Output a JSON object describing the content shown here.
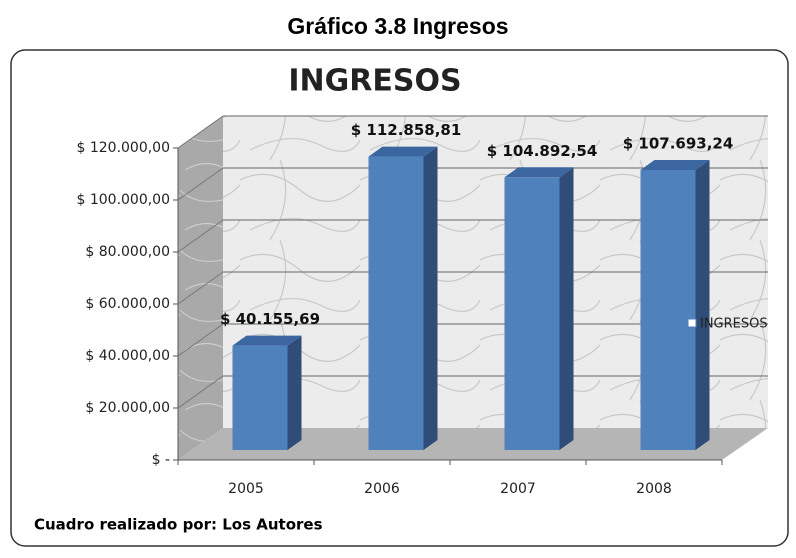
{
  "caption": "Gráfico 3.8 Ingresos",
  "source": "Cuadro realizado por: Los Autores",
  "chart_data": {
    "type": "bar3d",
    "title": "INGRESOS",
    "categories": [
      "2005",
      "2006",
      "2007",
      "2008"
    ],
    "series": [
      {
        "name": "INGRESOS",
        "color": "#4f81bd",
        "values": [
          40155.69,
          112858.81,
          104892.54,
          107693.24
        ],
        "value_labels": [
          "$ 40.155,69",
          "$ 112.858,81",
          "$ 104.892,54",
          "$ 107.693,24"
        ]
      }
    ],
    "ylim": [
      0,
      120000
    ],
    "yticks": [
      {
        "value": 0,
        "label": "$ -"
      },
      {
        "value": 20000,
        "label": "$ 20.000,00"
      },
      {
        "value": 40000,
        "label": "$ 40.000,00"
      },
      {
        "value": 60000,
        "label": "$ 60.000,00"
      },
      {
        "value": 80000,
        "label": "$ 80.000,00"
      },
      {
        "value": 100000,
        "label": "$ 100.000,00"
      },
      {
        "value": 120000,
        "label": "$ 120.000,00"
      }
    ],
    "grid": true,
    "legend": "right"
  }
}
